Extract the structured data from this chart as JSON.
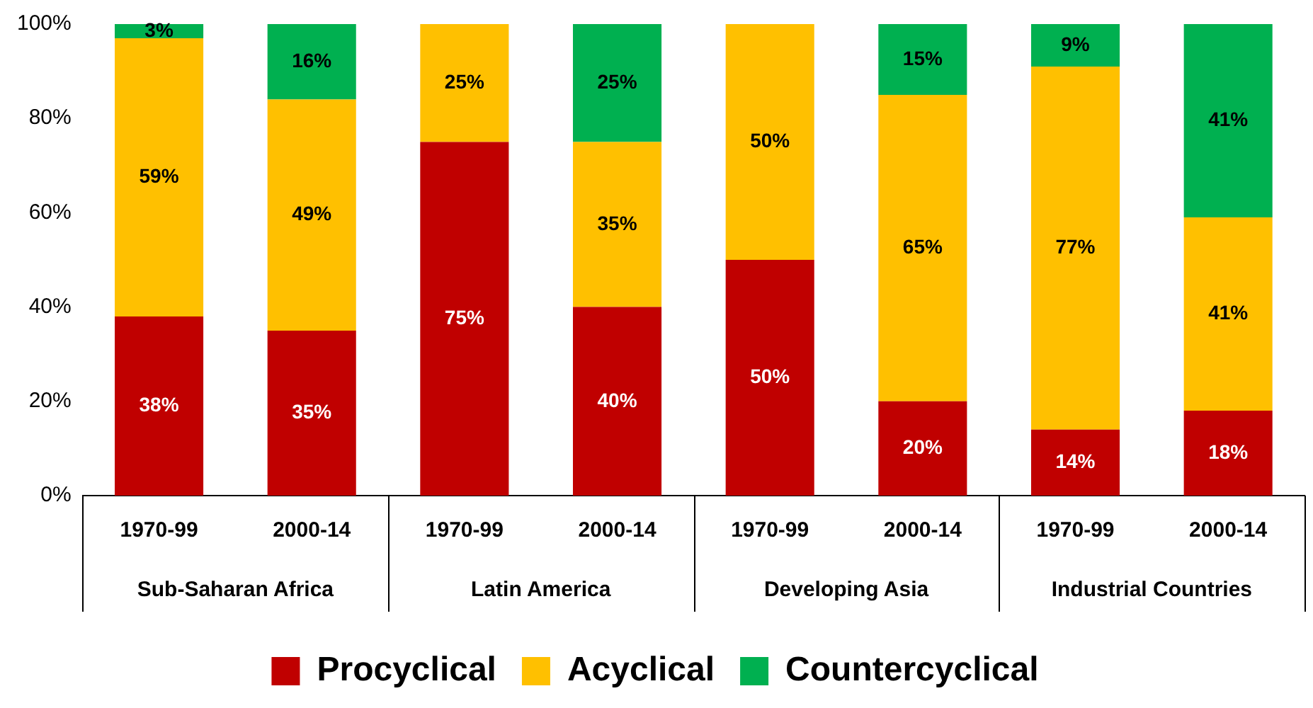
{
  "chart_data": {
    "type": "bar",
    "stacked": true,
    "categories": [
      "1970-99",
      "2000-14",
      "1970-99",
      "2000-14",
      "1970-99",
      "2000-14",
      "1970-99",
      "2000-14"
    ],
    "series": [
      {
        "name": "Procyclical",
        "color": "#c00000",
        "values": [
          38,
          35,
          75,
          40,
          50,
          20,
          14,
          18
        ],
        "value_labels": [
          "38%",
          "35%",
          "75%",
          "40%",
          "50%",
          "20%",
          "14%",
          "18%"
        ]
      },
      {
        "name": "Acyclical",
        "color": "#ffc000",
        "values": [
          59,
          49,
          25,
          35,
          50,
          65,
          77,
          41
        ],
        "value_labels": [
          "59%",
          "49%",
          "25%",
          "35%",
          "50%",
          "65%",
          "77%",
          "41%"
        ]
      },
      {
        "name": "Countercyclical",
        "color": "#00b050",
        "values": [
          3,
          16,
          null,
          25,
          null,
          15,
          9,
          41
        ],
        "value_labels": [
          "3%",
          "16%",
          null,
          "25%",
          null,
          "15%",
          "9%",
          "41%"
        ]
      }
    ],
    "ylim": [
      0,
      100
    ],
    "yticks": [
      {
        "value": 0,
        "label": "0%"
      },
      {
        "value": 20,
        "label": "20%"
      },
      {
        "value": 40,
        "label": "40%"
      },
      {
        "value": 60,
        "label": "60%"
      },
      {
        "value": 80,
        "label": "80%"
      },
      {
        "value": 100,
        "label": "100%"
      }
    ],
    "grid": false,
    "legend": "bottom",
    "annotations": [
      "Sub-Saharan Africa",
      "Latin America",
      "Developing Asia",
      "Industrial Countries"
    ]
  }
}
